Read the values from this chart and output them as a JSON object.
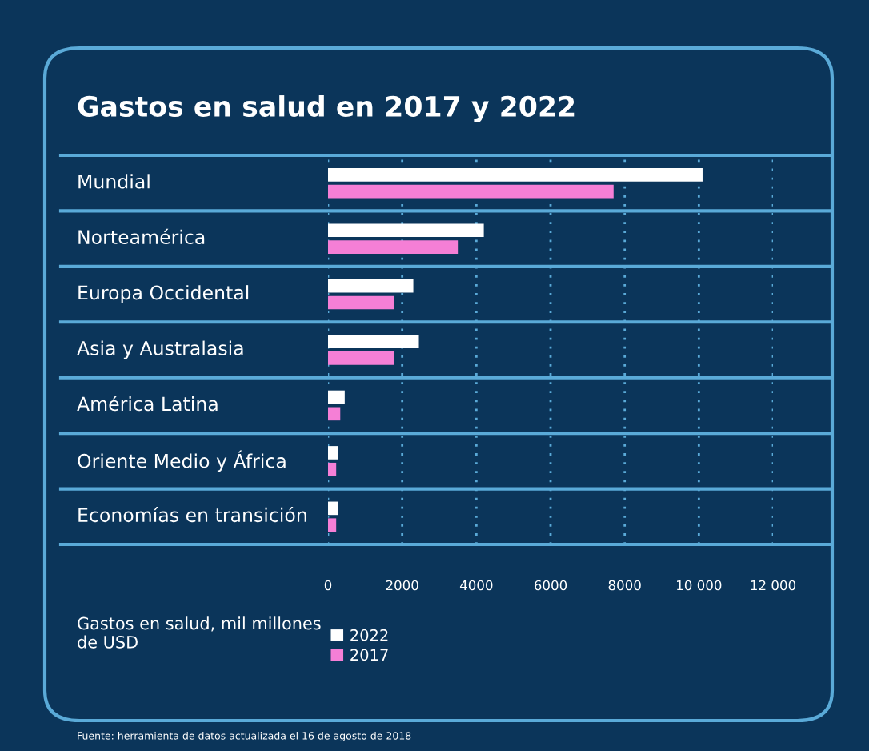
{
  "chart_data": {
    "type": "bar",
    "orientation": "horizontal",
    "title": "Gastos en salud en 2017 y 2022",
    "categories": [
      "Mundial",
      "Norteamérica",
      "Europa Occidental",
      "Asia y Australasia",
      "América Latina",
      "Oriente Medio y África",
      "Economías en transición"
    ],
    "series": [
      {
        "name": "2022",
        "color": "#ffffff",
        "values": [
          10100,
          4200,
          2300,
          2450,
          450,
          270,
          270
        ]
      },
      {
        "name": "2017",
        "color": "#f57fd6",
        "values": [
          7700,
          3500,
          1770,
          1770,
          330,
          220,
          220
        ]
      }
    ],
    "xlim": [
      0,
      12000
    ],
    "xticks": [
      0,
      2000,
      4000,
      6000,
      8000,
      {
        "value": 10000,
        "label": "10 000"
      },
      {
        "value": 12000,
        "label": "12 000"
      }
    ],
    "grid": "x",
    "legend": "bottom",
    "legend_title": "Gastos en salud, mil millones de USD",
    "annotations": [
      "Fuente: herramienta de datos actualizada el 16 de agosto de 2018"
    ]
  }
}
